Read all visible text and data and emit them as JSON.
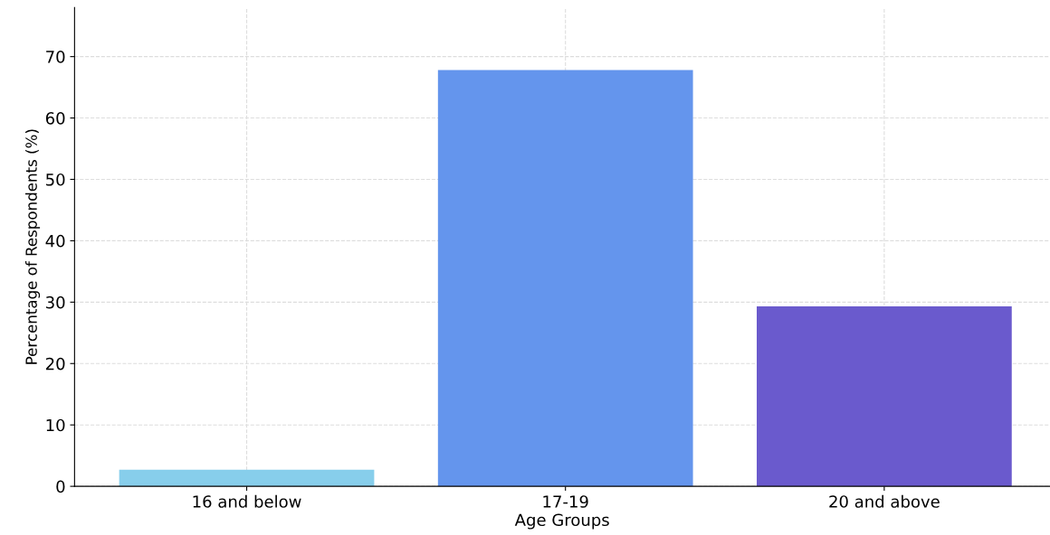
{
  "chart_data": {
    "type": "bar",
    "xlabel": "Age Groups",
    "ylabel": "Percentage of Respondents (%)",
    "categories": [
      "16 and below",
      "17-19",
      "20 and above"
    ],
    "values": [
      2.7,
      67.8,
      29.3
    ],
    "colors": [
      "#87ceeb",
      "#6495ed",
      "#6a5acd"
    ],
    "ylim": [
      0,
      78
    ],
    "yticks": [
      0,
      10,
      20,
      30,
      40,
      50,
      60,
      70
    ],
    "grid": true
  }
}
